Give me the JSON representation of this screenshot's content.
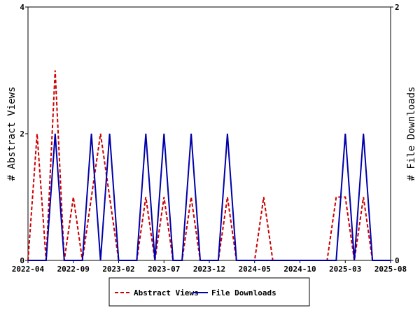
{
  "chart_data": {
    "type": "line",
    "x_axis": {
      "ticks": [
        "2022-04",
        "2022-09",
        "2023-02",
        "2023-07",
        "2023-12",
        "2024-05",
        "2024-10",
        "2025-03",
        "2025-08"
      ],
      "range": [
        "2022-04",
        "2025-08"
      ]
    },
    "y_left": {
      "label": "# Abstract Views",
      "ticks": [
        0,
        2,
        4
      ],
      "range": [
        0,
        4
      ]
    },
    "y_right": {
      "label": "# File Downloads",
      "ticks": [
        0,
        2
      ],
      "range": [
        0,
        2
      ]
    },
    "grid": false,
    "legend_position": "bottom-center",
    "series": [
      {
        "name": "Abstract Views",
        "axis": "left",
        "color": "#cc0000",
        "style": "dashed",
        "values": [
          [
            "2022-04",
            0
          ],
          [
            "2022-05",
            2
          ],
          [
            "2022-06",
            0
          ],
          [
            "2022-07",
            3
          ],
          [
            "2022-08",
            0
          ],
          [
            "2022-09",
            1
          ],
          [
            "2022-10",
            0
          ],
          [
            "2022-11",
            1
          ],
          [
            "2022-12",
            2
          ],
          [
            "2023-01",
            1
          ],
          [
            "2023-02",
            0
          ],
          [
            "2023-03",
            0
          ],
          [
            "2023-04",
            0
          ],
          [
            "2023-05",
            1
          ],
          [
            "2023-06",
            0
          ],
          [
            "2023-07",
            1
          ],
          [
            "2023-08",
            0
          ],
          [
            "2023-09",
            0
          ],
          [
            "2023-10",
            1
          ],
          [
            "2023-11",
            0
          ],
          [
            "2023-12",
            0
          ],
          [
            "2024-01",
            0
          ],
          [
            "2024-02",
            1
          ],
          [
            "2024-03",
            0
          ],
          [
            "2024-04",
            0
          ],
          [
            "2024-05",
            0
          ],
          [
            "2024-06",
            1
          ],
          [
            "2024-07",
            0
          ],
          [
            "2024-08",
            0
          ],
          [
            "2024-09",
            0
          ],
          [
            "2024-10",
            0
          ],
          [
            "2024-11",
            0
          ],
          [
            "2024-12",
            0
          ],
          [
            "2025-01",
            0
          ],
          [
            "2025-02",
            1
          ],
          [
            "2025-03",
            1
          ],
          [
            "2025-04",
            0
          ],
          [
            "2025-05",
            1
          ],
          [
            "2025-06",
            0
          ],
          [
            "2025-07",
            0
          ],
          [
            "2025-08",
            0
          ]
        ]
      },
      {
        "name": "File Downloads",
        "axis": "right",
        "color": "#0000aa",
        "style": "solid",
        "values": [
          [
            "2022-04",
            0
          ],
          [
            "2022-05",
            0
          ],
          [
            "2022-06",
            0
          ],
          [
            "2022-07",
            1
          ],
          [
            "2022-08",
            0
          ],
          [
            "2022-09",
            0
          ],
          [
            "2022-10",
            0
          ],
          [
            "2022-11",
            1
          ],
          [
            "2022-12",
            0
          ],
          [
            "2023-01",
            1
          ],
          [
            "2023-02",
            0
          ],
          [
            "2023-03",
            0
          ],
          [
            "2023-04",
            0
          ],
          [
            "2023-05",
            1
          ],
          [
            "2023-06",
            0
          ],
          [
            "2023-07",
            1
          ],
          [
            "2023-08",
            0
          ],
          [
            "2023-09",
            0
          ],
          [
            "2023-10",
            1
          ],
          [
            "2023-11",
            0
          ],
          [
            "2023-12",
            0
          ],
          [
            "2024-01",
            0
          ],
          [
            "2024-02",
            1
          ],
          [
            "2024-03",
            0
          ],
          [
            "2024-04",
            0
          ],
          [
            "2024-05",
            0
          ],
          [
            "2024-06",
            0
          ],
          [
            "2024-07",
            0
          ],
          [
            "2024-08",
            0
          ],
          [
            "2024-09",
            0
          ],
          [
            "2024-10",
            0
          ],
          [
            "2024-11",
            0
          ],
          [
            "2024-12",
            0
          ],
          [
            "2025-01",
            0
          ],
          [
            "2025-02",
            0
          ],
          [
            "2025-03",
            1
          ],
          [
            "2025-04",
            0
          ],
          [
            "2025-05",
            1
          ],
          [
            "2025-06",
            0
          ],
          [
            "2025-07",
            0
          ],
          [
            "2025-08",
            0
          ]
        ]
      }
    ]
  }
}
